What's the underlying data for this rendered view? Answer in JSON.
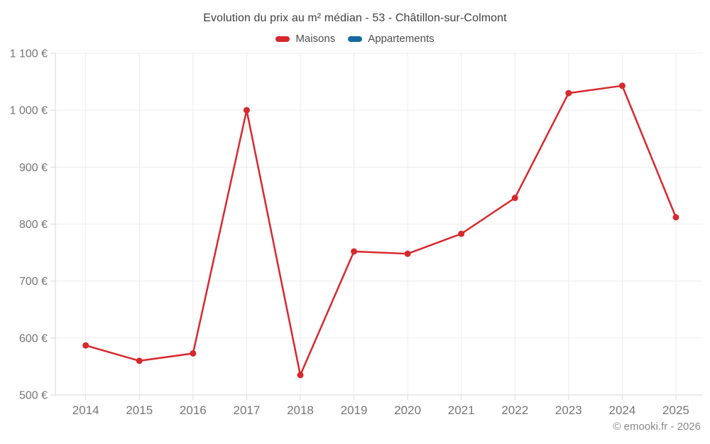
{
  "chart_data": {
    "type": "line",
    "title": "Evolution du prix au m² médian - 53 - Châtillon-sur-Colmont",
    "categories": [
      "2014",
      "2015",
      "2016",
      "2017",
      "2018",
      "2019",
      "2020",
      "2021",
      "2022",
      "2023",
      "2024",
      "2025"
    ],
    "series": [
      {
        "name": "Maisons",
        "color": "#d7282e",
        "values": [
          587,
          560,
          573,
          1000,
          535,
          752,
          748,
          783,
          846,
          1030,
          1043,
          812
        ]
      },
      {
        "name": "Appartements",
        "color": "#146a9f",
        "values": [
          null,
          null,
          null,
          null,
          null,
          null,
          null,
          null,
          null,
          null,
          null,
          null
        ]
      }
    ],
    "ylim": [
      500,
      1100
    ],
    "ytick_step": 100,
    "ytick_labels": [
      "500 €",
      "600 €",
      "700 €",
      "800 €",
      "900 €",
      "1 000 €",
      "1 100 €"
    ],
    "grid": true,
    "legend_position": "top",
    "colors": {
      "grid": "#ececec",
      "axis": "#dadada",
      "tick_label": "#767676",
      "title": "#414141",
      "legend_text": "#4f4f4f",
      "copyright": "#8a8a8a"
    }
  },
  "footer": {
    "copyright": "© emooki.fr - 2026"
  }
}
